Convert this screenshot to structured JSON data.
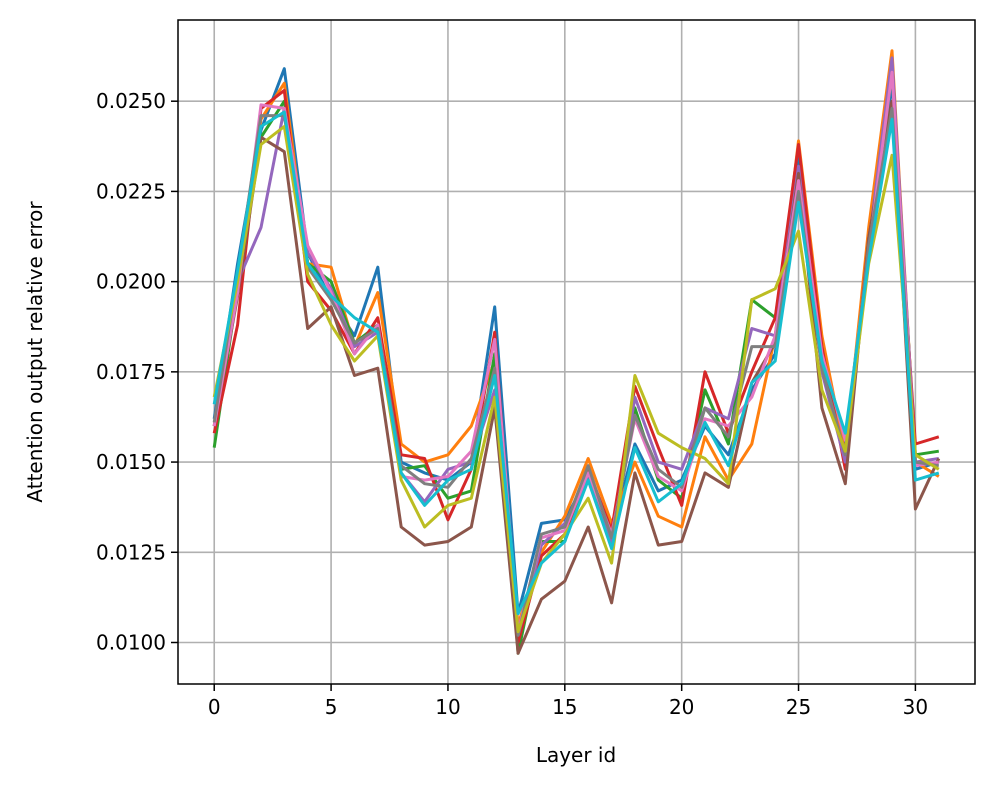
{
  "chart_data": {
    "type": "line",
    "title": "",
    "xlabel": "Layer id",
    "ylabel": "Attention output relative error",
    "xlim": [
      -1.55,
      32.55
    ],
    "ylim": [
      0.00885,
      0.02725
    ],
    "xticks": [
      0,
      5,
      10,
      15,
      20,
      25,
      30
    ],
    "xtick_labels": [
      "0",
      "5",
      "10",
      "15",
      "20",
      "25",
      "30"
    ],
    "yticks": [
      0.01,
      0.0125,
      0.015,
      0.0175,
      0.02,
      0.0225,
      0.025
    ],
    "ytick_labels": [
      "0.0100",
      "0.0125",
      "0.0150",
      "0.0175",
      "0.0200",
      "0.0225",
      "0.0250"
    ],
    "grid": true,
    "legend": "none",
    "x": [
      0,
      1,
      2,
      3,
      4,
      5,
      6,
      7,
      8,
      9,
      10,
      11,
      12,
      13,
      14,
      15,
      16,
      17,
      18,
      19,
      20,
      21,
      22,
      23,
      24,
      25,
      26,
      27,
      28,
      29,
      30,
      31
    ],
    "series": [
      {
        "color": "#1f77b4",
        "values": [
          0.0162,
          0.0205,
          0.0242,
          0.0259,
          0.0208,
          0.0195,
          0.0185,
          0.0204,
          0.015,
          0.0147,
          0.0145,
          0.015,
          0.0193,
          0.0108,
          0.0133,
          0.0134,
          0.0146,
          0.013,
          0.0155,
          0.0142,
          0.0145,
          0.016,
          0.0152,
          0.017,
          0.018,
          0.0235,
          0.018,
          0.0155,
          0.021,
          0.0255,
          0.0148,
          0.015
        ]
      },
      {
        "color": "#ff7f0e",
        "values": [
          0.016,
          0.02,
          0.0245,
          0.0255,
          0.0205,
          0.0204,
          0.0182,
          0.0197,
          0.0155,
          0.015,
          0.0152,
          0.016,
          0.0178,
          0.0105,
          0.0125,
          0.0135,
          0.0151,
          0.0133,
          0.015,
          0.0135,
          0.0132,
          0.0157,
          0.0145,
          0.0155,
          0.0185,
          0.0239,
          0.0185,
          0.0152,
          0.0215,
          0.0264,
          0.015,
          0.0146
        ]
      },
      {
        "color": "#2ca02c",
        "values": [
          0.0154,
          0.0198,
          0.024,
          0.025,
          0.0205,
          0.02,
          0.0183,
          0.0188,
          0.0148,
          0.0149,
          0.014,
          0.0142,
          0.018,
          0.0097,
          0.0128,
          0.0128,
          0.0148,
          0.0128,
          0.0165,
          0.0145,
          0.014,
          0.017,
          0.0155,
          0.0195,
          0.019,
          0.023,
          0.0178,
          0.015,
          0.0208,
          0.0258,
          0.0152,
          0.0153
        ]
      },
      {
        "color": "#d62728",
        "values": [
          0.0158,
          0.0188,
          0.0248,
          0.0253,
          0.02,
          0.0192,
          0.018,
          0.019,
          0.0152,
          0.0151,
          0.0134,
          0.0148,
          0.0186,
          0.01,
          0.0124,
          0.013,
          0.0148,
          0.0131,
          0.0171,
          0.0154,
          0.0138,
          0.0175,
          0.0158,
          0.0175,
          0.019,
          0.0238,
          0.0182,
          0.0148,
          0.0212,
          0.025,
          0.0155,
          0.0157
        ]
      },
      {
        "color": "#9467bd",
        "values": [
          0.016,
          0.02,
          0.0215,
          0.0248,
          0.0208,
          0.0198,
          0.0182,
          0.0186,
          0.0147,
          0.0139,
          0.0148,
          0.015,
          0.017,
          0.0102,
          0.0127,
          0.0133,
          0.0145,
          0.0127,
          0.0168,
          0.015,
          0.0148,
          0.0165,
          0.0162,
          0.0187,
          0.0185,
          0.0232,
          0.0175,
          0.015,
          0.021,
          0.0262,
          0.015,
          0.0151
        ]
      },
      {
        "color": "#8c564b",
        "values": [
          0.016,
          0.0196,
          0.024,
          0.0236,
          0.0187,
          0.0193,
          0.0174,
          0.0176,
          0.0132,
          0.0127,
          0.0128,
          0.0132,
          0.0165,
          0.0097,
          0.0112,
          0.0117,
          0.0132,
          0.0111,
          0.0147,
          0.0127,
          0.0128,
          0.0147,
          0.0143,
          0.0172,
          0.0183,
          0.023,
          0.0165,
          0.0144,
          0.0212,
          0.025,
          0.0137,
          0.0151
        ]
      },
      {
        "color": "#e377c2",
        "values": [
          0.016,
          0.0197,
          0.0249,
          0.0248,
          0.021,
          0.0197,
          0.018,
          0.0188,
          0.0146,
          0.0145,
          0.0146,
          0.0153,
          0.0184,
          0.0103,
          0.0129,
          0.0131,
          0.0147,
          0.013,
          0.0162,
          0.0146,
          0.0142,
          0.0162,
          0.016,
          0.0168,
          0.0185,
          0.0228,
          0.018,
          0.0156,
          0.0208,
          0.0258,
          0.0149,
          0.015
        ]
      },
      {
        "color": "#7f7f7f",
        "values": [
          0.0161,
          0.0202,
          0.0246,
          0.0246,
          0.0204,
          0.0195,
          0.0183,
          0.0187,
          0.0149,
          0.0144,
          0.0143,
          0.0151,
          0.0176,
          0.0102,
          0.013,
          0.0132,
          0.0149,
          0.0129,
          0.0163,
          0.0148,
          0.0143,
          0.0165,
          0.0157,
          0.0182,
          0.0182,
          0.0225,
          0.0176,
          0.0152,
          0.021,
          0.0248,
          0.015,
          0.0149
        ]
      },
      {
        "color": "#bcbd22",
        "values": [
          0.0168,
          0.02,
          0.0238,
          0.0243,
          0.0202,
          0.0188,
          0.0178,
          0.0185,
          0.0145,
          0.0132,
          0.0138,
          0.014,
          0.0168,
          0.0103,
          0.0122,
          0.013,
          0.014,
          0.0122,
          0.0174,
          0.0158,
          0.0154,
          0.0151,
          0.0144,
          0.0195,
          0.0198,
          0.0214,
          0.017,
          0.0153,
          0.0205,
          0.0235,
          0.0152,
          0.0148
        ]
      },
      {
        "color": "#17becf",
        "values": [
          0.0166,
          0.0203,
          0.0243,
          0.0247,
          0.0205,
          0.0196,
          0.019,
          0.0186,
          0.0147,
          0.0138,
          0.0145,
          0.0148,
          0.0174,
          0.0108,
          0.0122,
          0.0128,
          0.0145,
          0.0126,
          0.0154,
          0.0139,
          0.0144,
          0.0161,
          0.0149,
          0.0172,
          0.0178,
          0.0222,
          0.0178,
          0.0158,
          0.0206,
          0.0245,
          0.0145,
          0.0147
        ]
      }
    ]
  }
}
